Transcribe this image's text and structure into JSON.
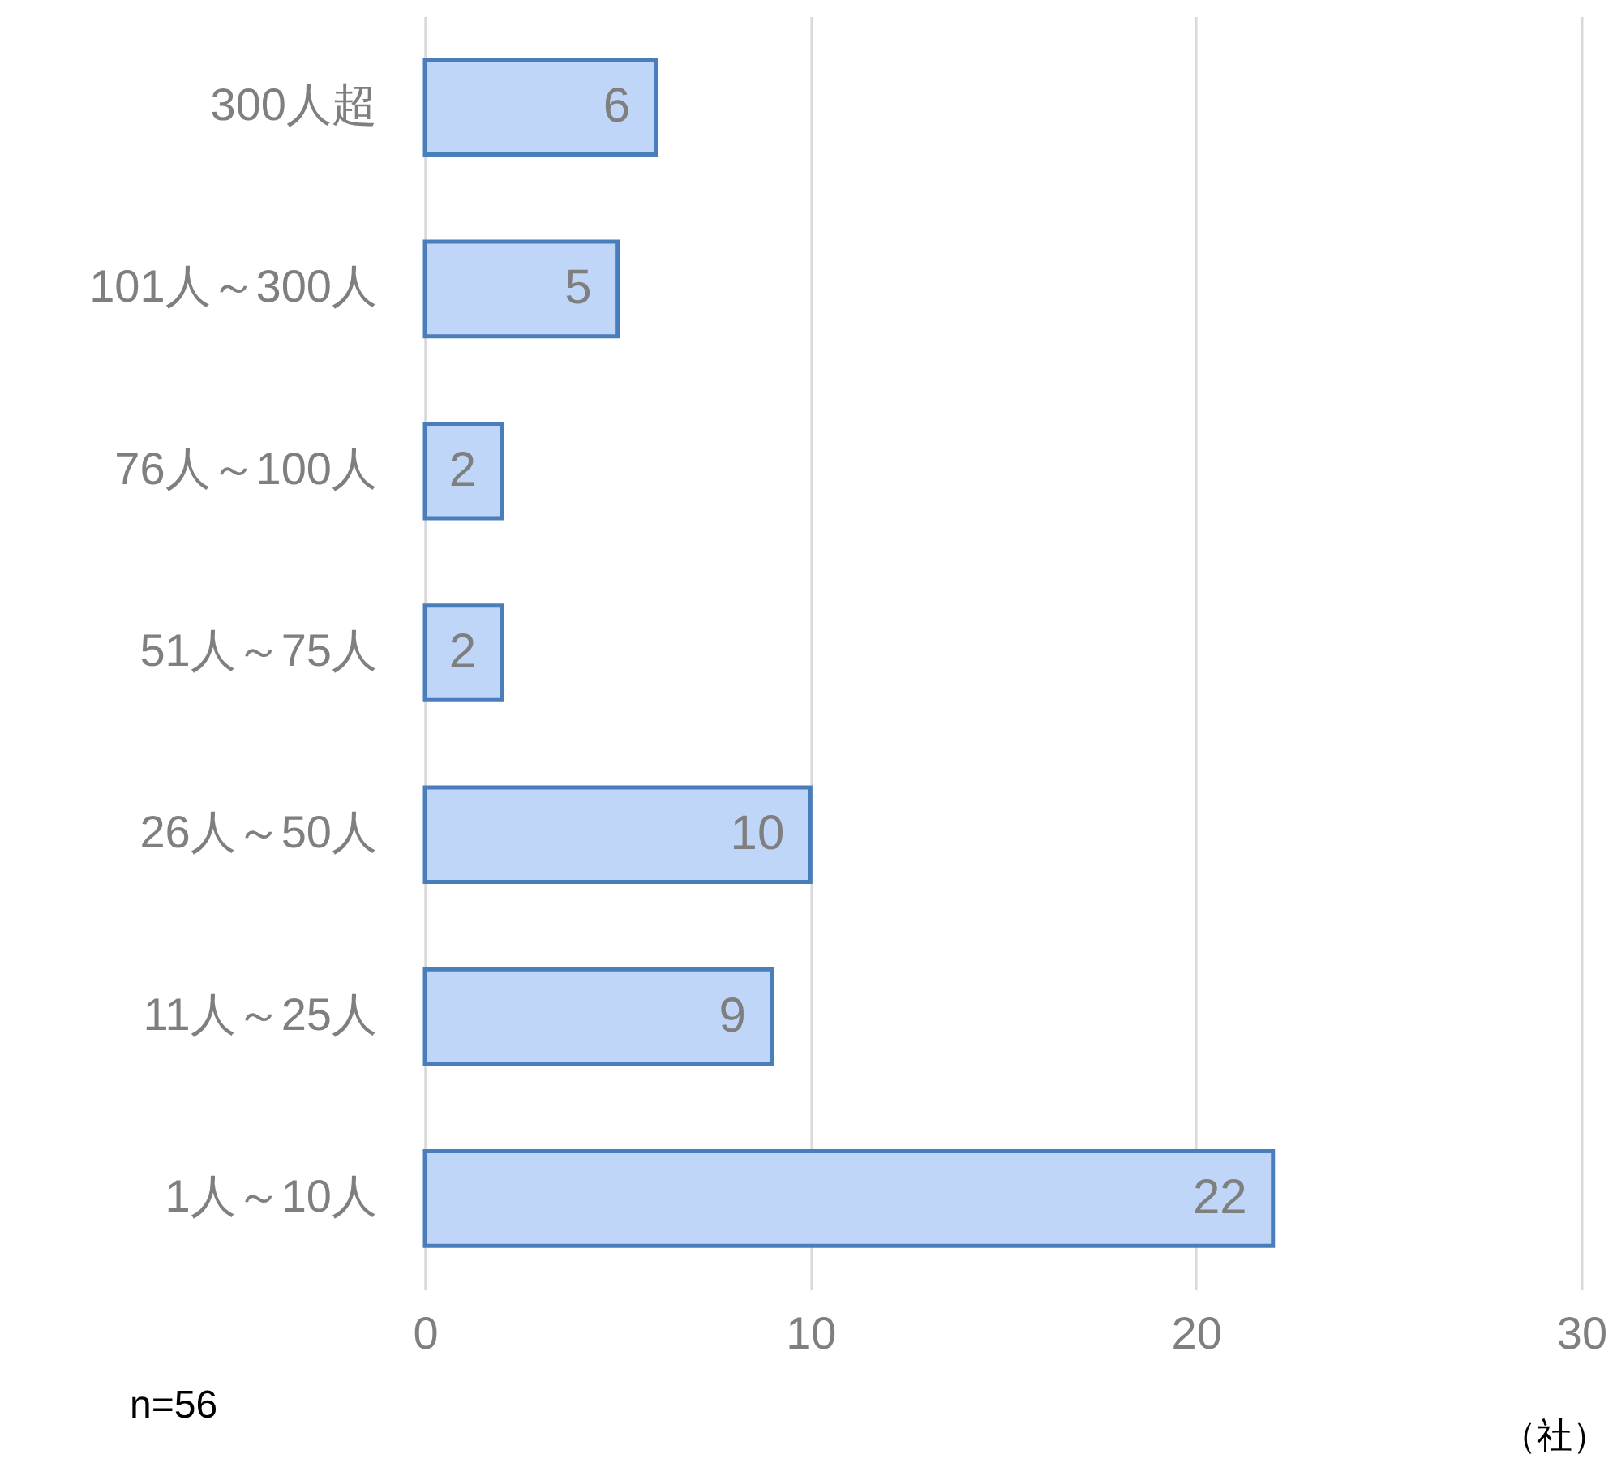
{
  "chart_data": {
    "type": "bar",
    "orientation": "horizontal",
    "categories": [
      "300人超",
      "101人～300人",
      "76人～100人",
      "51人～75人",
      "26人～50人",
      "11人～25人",
      "1人～10人"
    ],
    "values": [
      6,
      5,
      2,
      2,
      10,
      9,
      22
    ],
    "color": "#c0d6f8",
    "xlim": [
      0,
      30
    ],
    "xticks": [
      0,
      10,
      20,
      30
    ],
    "grid": "x",
    "data_labels": true,
    "xlabel": "（社）",
    "annotations": [
      "n=56"
    ]
  }
}
